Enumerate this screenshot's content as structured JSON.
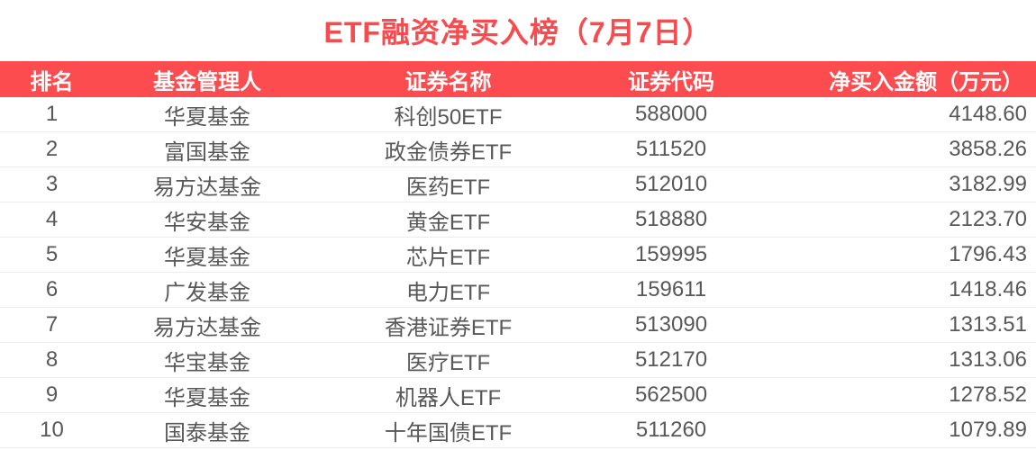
{
  "title": "ETF融资净买入榜（7月7日）",
  "colors": {
    "title_red": "#fb4a4d",
    "header_bg": "#fc4c4f",
    "header_text": "#ffffff",
    "body_text": "#585858",
    "row_divider": "#ececec"
  },
  "chart_data": {
    "type": "table",
    "title": "ETF融资净买入榜（7月7日）",
    "columns": [
      "排名",
      "基金管理人",
      "证券名称",
      "证券代码",
      "净买入金额（万元）"
    ],
    "rows": [
      [
        "1",
        "华夏基金",
        "科创50ETF",
        "588000",
        "4148.60"
      ],
      [
        "2",
        "富国基金",
        "政金债券ETF",
        "511520",
        "3858.26"
      ],
      [
        "3",
        "易方达基金",
        "医药ETF",
        "512010",
        "3182.99"
      ],
      [
        "4",
        "华安基金",
        "黄金ETF",
        "518880",
        "2123.70"
      ],
      [
        "5",
        "华夏基金",
        "芯片ETF",
        "159995",
        "1796.43"
      ],
      [
        "6",
        "广发基金",
        "电力ETF",
        "159611",
        "1418.46"
      ],
      [
        "7",
        "易方达基金",
        "香港证券ETF",
        "513090",
        "1313.51"
      ],
      [
        "8",
        "华宝基金",
        "医疗ETF",
        "512170",
        "1313.06"
      ],
      [
        "9",
        "华夏基金",
        "机器人ETF",
        "562500",
        "1278.52"
      ],
      [
        "10",
        "国泰基金",
        "十年国债ETF",
        "511260",
        "1079.89"
      ]
    ]
  }
}
